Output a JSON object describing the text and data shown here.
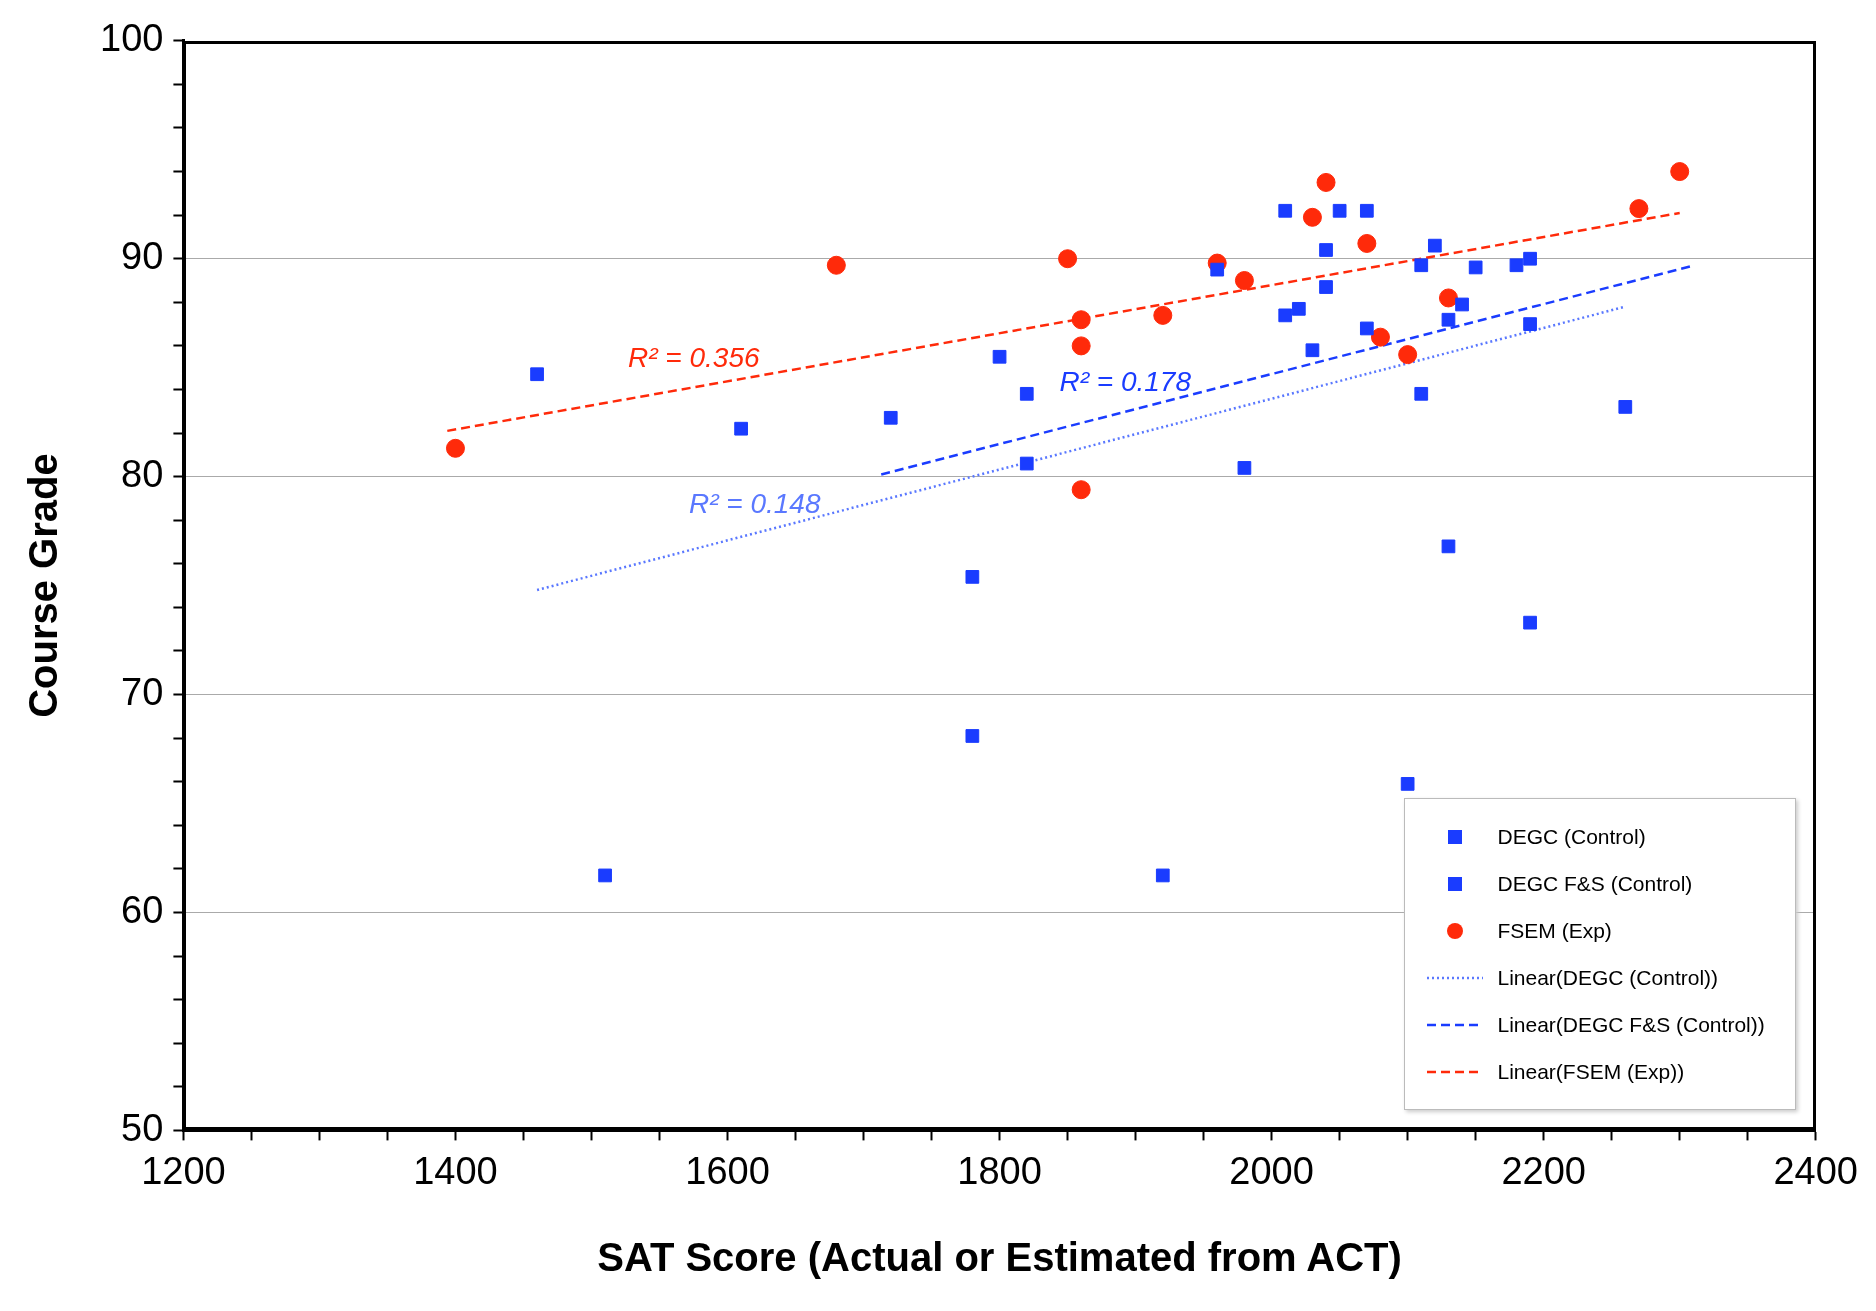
{
  "chart_data": {
    "type": "scatter",
    "xlabel": "SAT Score (Actual or Estimated from ACT)",
    "ylabel": "Course Grade",
    "xlim": [
      1200,
      2400
    ],
    "xticks": [
      1200,
      {
        "value": 1250,
        "label": null
      },
      {
        "value": 1300,
        "label": null
      },
      {
        "value": 1350,
        "label": null
      },
      1400,
      {
        "value": 1450,
        "label": null
      },
      {
        "value": 1500,
        "label": null
      },
      {
        "value": 1550,
        "label": null
      },
      1600,
      {
        "value": 1650,
        "label": null
      },
      {
        "value": 1700,
        "label": null
      },
      {
        "value": 1750,
        "label": null
      },
      1800,
      {
        "value": 1850,
        "label": null
      },
      {
        "value": 1900,
        "label": null
      },
      {
        "value": 1950,
        "label": null
      },
      2000,
      {
        "value": 2050,
        "label": null
      },
      {
        "value": 2100,
        "label": null
      },
      {
        "value": 2150,
        "label": null
      },
      2200,
      {
        "value": 2250,
        "label": null
      },
      {
        "value": 2300,
        "label": null
      },
      {
        "value": 2350,
        "label": null
      },
      2400
    ],
    "ylim": [
      50,
      100
    ],
    "yticks": [
      50,
      {
        "value": 52,
        "label": null
      },
      {
        "value": 54,
        "label": null
      },
      {
        "value": 56,
        "label": null
      },
      {
        "value": 58,
        "label": null
      },
      60,
      {
        "value": 62,
        "label": null
      },
      {
        "value": 64,
        "label": null
      },
      {
        "value": 66,
        "label": null
      },
      {
        "value": 68,
        "label": null
      },
      70,
      {
        "value": 72,
        "label": null
      },
      {
        "value": 74,
        "label": null
      },
      {
        "value": 76,
        "label": null
      },
      {
        "value": 78,
        "label": null
      },
      80,
      {
        "value": 82,
        "label": null
      },
      {
        "value": 84,
        "label": null
      },
      {
        "value": 86,
        "label": null
      },
      {
        "value": 88,
        "label": null
      },
      90,
      {
        "value": 92,
        "label": null
      },
      {
        "value": 94,
        "label": null
      },
      {
        "value": 96,
        "label": null
      },
      {
        "value": 98,
        "label": null
      },
      100
    ],
    "grid": "y",
    "legend": "bottom right",
    "series": [
      {
        "name": "DEGC (Control)",
        "marker": "square",
        "color": "#1a3cff",
        "x": [
          1460,
          1610,
          1510,
          1920,
          2050,
          2070,
          2120,
          2130,
          2130,
          2100
        ],
        "values": [
          84.7,
          82.2,
          61.7,
          61.7,
          92.2,
          92.2,
          90.6,
          87.2,
          76.8,
          65.9
        ]
      },
      {
        "name": "DEGC F&S (Control)",
        "marker": "square",
        "color": "#1a3cff",
        "x": [
          1720,
          1780,
          1780,
          1800,
          1820,
          1820,
          1960,
          1980,
          2010,
          2010,
          2020,
          2030,
          2040,
          2040,
          2070,
          2110,
          2110,
          2140,
          2150,
          2180,
          2190,
          2190,
          2190,
          2260
        ],
        "values": [
          82.7,
          75.4,
          68.1,
          85.5,
          83.8,
          80.6,
          89.5,
          80.4,
          92.2,
          87.4,
          87.7,
          85.8,
          90.4,
          88.7,
          86.8,
          89.7,
          83.8,
          87.9,
          89.6,
          89.7,
          90.0,
          87.0,
          73.3,
          83.2
        ]
      },
      {
        "name": "FSEM (Exp)",
        "marker": "circle",
        "color": "#ff2a0a",
        "x": [
          1400,
          1680,
          1850,
          1860,
          1860,
          1860,
          1920,
          1960,
          1980,
          2030,
          2040,
          2070,
          2080,
          2100,
          2130,
          2270,
          2300
        ],
        "values": [
          81.3,
          89.7,
          90.0,
          87.2,
          86.0,
          79.4,
          87.4,
          89.8,
          89.0,
          91.9,
          93.5,
          90.7,
          86.4,
          85.6,
          88.2,
          92.3,
          94.0
        ]
      },
      {
        "name": "Linear(DEGC (Control))",
        "type": "line",
        "marker": "none",
        "line_style": "dotted",
        "color": "#5a78ff",
        "x": [
          1460,
          2260
        ],
        "values": [
          74.8,
          87.8
        ]
      },
      {
        "name": "Linear(DEGC F&S (Control))",
        "type": "line",
        "marker": "none",
        "line_style": "dashed",
        "color": "#1a3cff",
        "x": [
          1713,
          2311
        ],
        "values": [
          80.1,
          89.7
        ]
      },
      {
        "name": "Linear(FSEM (Exp))",
        "type": "line",
        "marker": "none",
        "line_style": "dashed",
        "color": "#ff2a0a",
        "x": [
          1394,
          2300
        ],
        "values": [
          82.1,
          92.1
        ]
      }
    ],
    "annotations": [
      "R² = 0.148",
      "R² = 0.178",
      "R² = 0.356"
    ]
  }
}
